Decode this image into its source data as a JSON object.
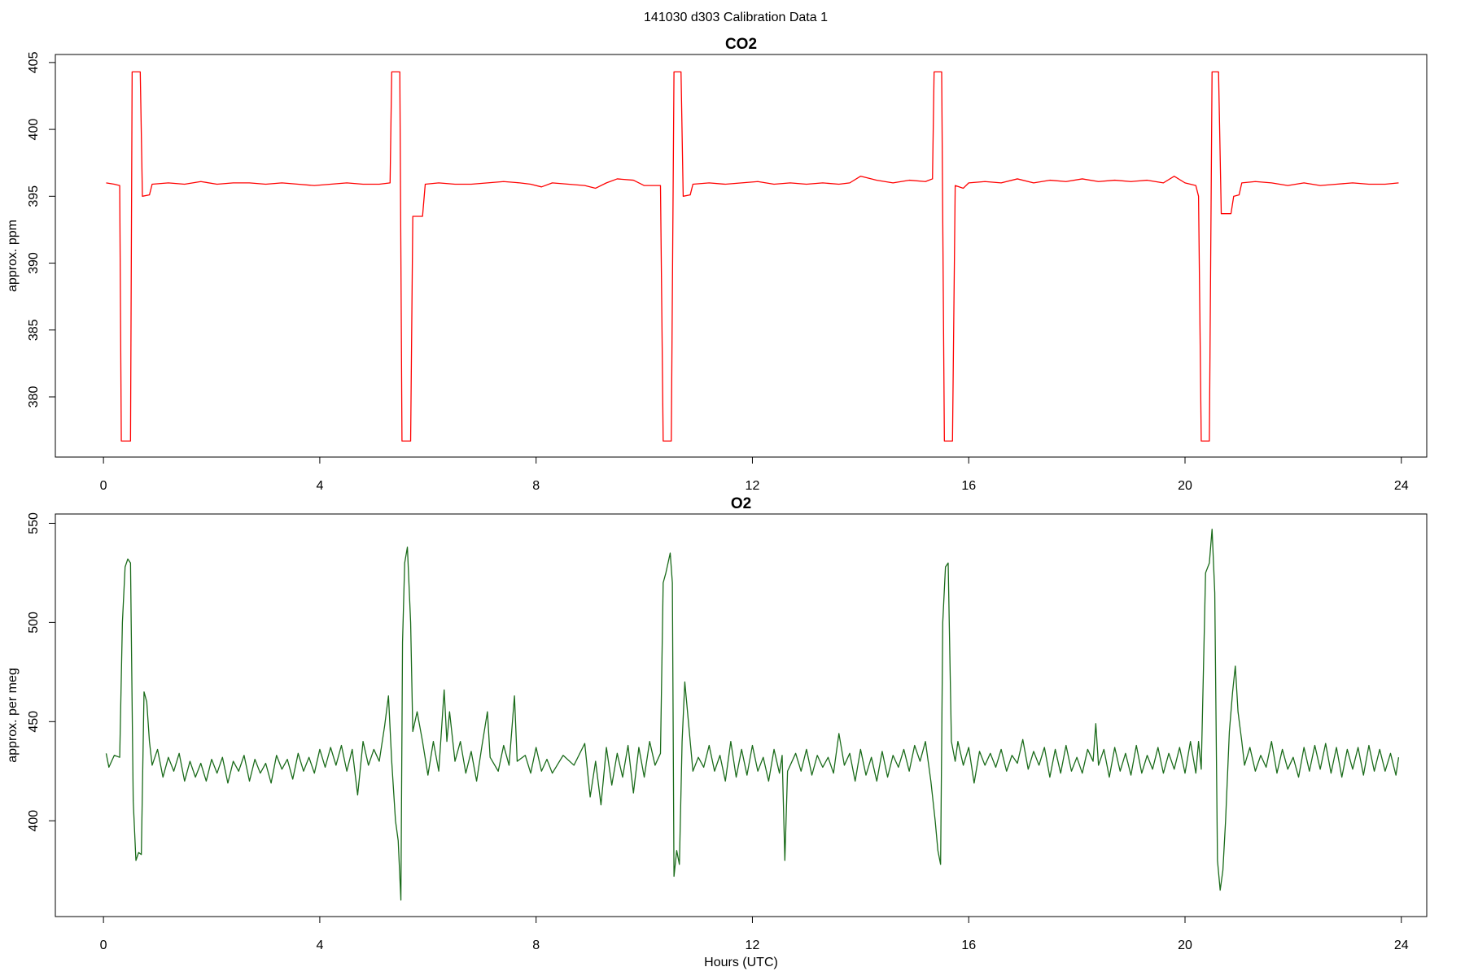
{
  "title": "141030   d303   Calibration Data 1",
  "chart_data": [
    {
      "type": "line",
      "title": "CO2",
      "ylabel": "approx. ppm",
      "xlim": [
        -0.89,
        24.47
      ],
      "xticks": [
        0,
        4,
        8,
        12,
        16,
        20,
        24
      ],
      "ylim": [
        375.5,
        405.6
      ],
      "yticks": [
        380,
        385,
        390,
        395,
        400,
        405
      ],
      "x": [
        0.05,
        0.2,
        0.3,
        0.33,
        0.5,
        0.53,
        0.68,
        0.72,
        0.85,
        0.9,
        1.2,
        1.5,
        1.8,
        2.1,
        2.4,
        2.7,
        3.0,
        3.3,
        3.6,
        3.9,
        4.2,
        4.5,
        4.8,
        5.1,
        5.3,
        5.33,
        5.48,
        5.52,
        5.68,
        5.72,
        5.9,
        5.95,
        6.2,
        6.5,
        6.8,
        7.1,
        7.4,
        7.7,
        7.9,
        8.1,
        8.3,
        8.6,
        8.9,
        9.1,
        9.3,
        9.5,
        9.8,
        10.0,
        10.3,
        10.35,
        10.5,
        10.55,
        10.68,
        10.72,
        10.85,
        10.9,
        11.2,
        11.5,
        11.8,
        12.1,
        12.4,
        12.7,
        13.0,
        13.3,
        13.6,
        13.8,
        14.0,
        14.3,
        14.6,
        14.9,
        15.2,
        15.33,
        15.36,
        15.5,
        15.55,
        15.7,
        15.75,
        15.9,
        16.0,
        16.3,
        16.6,
        16.9,
        17.2,
        17.5,
        17.8,
        18.1,
        18.4,
        18.7,
        19.0,
        19.3,
        19.6,
        19.8,
        20.0,
        20.2,
        20.25,
        20.3,
        20.45,
        20.5,
        20.62,
        20.67,
        20.85,
        20.9,
        21.0,
        21.05,
        21.3,
        21.6,
        21.9,
        22.2,
        22.5,
        22.8,
        23.1,
        23.4,
        23.7,
        23.95
      ],
      "series": [
        {
          "color": "#ff0000",
          "values": [
            396.0,
            395.9,
            395.8,
            376.7,
            376.7,
            404.3,
            404.3,
            395.0,
            395.1,
            395.9,
            396.0,
            395.9,
            396.1,
            395.9,
            396.0,
            396.0,
            395.9,
            396.0,
            395.9,
            395.8,
            395.9,
            396.0,
            395.9,
            395.9,
            396.0,
            404.3,
            404.3,
            376.7,
            376.7,
            393.5,
            393.5,
            395.9,
            396.0,
            395.9,
            395.9,
            396.0,
            396.1,
            396.0,
            395.9,
            395.7,
            396.0,
            395.9,
            395.8,
            395.6,
            396.0,
            396.3,
            396.2,
            395.8,
            395.8,
            376.7,
            376.7,
            404.3,
            404.3,
            395.0,
            395.1,
            395.9,
            396.0,
            395.9,
            396.0,
            396.1,
            395.9,
            396.0,
            395.9,
            396.0,
            395.9,
            396.0,
            396.5,
            396.2,
            396.0,
            396.2,
            396.1,
            396.3,
            404.3,
            404.3,
            376.7,
            376.7,
            395.8,
            395.6,
            396.0,
            396.1,
            396.0,
            396.3,
            396.0,
            396.2,
            396.1,
            396.3,
            396.1,
            396.2,
            396.1,
            396.2,
            396.0,
            396.5,
            396.0,
            395.8,
            395.0,
            376.7,
            376.7,
            404.3,
            404.3,
            393.7,
            393.7,
            395.0,
            395.1,
            396.0,
            396.1,
            396.0,
            395.8,
            396.0,
            395.8,
            395.9,
            396.0,
            395.9,
            395.9,
            396.0
          ]
        }
      ]
    },
    {
      "type": "line",
      "title": "O2",
      "ylabel": "approx. per meg",
      "xlabel": "Hours (UTC)",
      "xlim": [
        -0.89,
        24.47
      ],
      "xticks": [
        0,
        4,
        8,
        12,
        16,
        20,
        24
      ],
      "ylim": [
        351.7,
        554.7
      ],
      "yticks": [
        400,
        450,
        500,
        550
      ],
      "x": [
        0.05,
        0.1,
        0.2,
        0.3,
        0.35,
        0.4,
        0.45,
        0.5,
        0.55,
        0.6,
        0.65,
        0.7,
        0.75,
        0.8,
        0.85,
        0.9,
        1.0,
        1.1,
        1.2,
        1.3,
        1.4,
        1.5,
        1.6,
        1.7,
        1.8,
        1.9,
        2.0,
        2.1,
        2.2,
        2.3,
        2.4,
        2.5,
        2.6,
        2.7,
        2.8,
        2.9,
        3.0,
        3.1,
        3.2,
        3.3,
        3.4,
        3.5,
        3.6,
        3.7,
        3.8,
        3.9,
        4.0,
        4.1,
        4.2,
        4.3,
        4.4,
        4.5,
        4.6,
        4.7,
        4.8,
        4.9,
        5.0,
        5.1,
        5.2,
        5.27,
        5.33,
        5.4,
        5.45,
        5.5,
        5.53,
        5.57,
        5.62,
        5.68,
        5.72,
        5.8,
        5.9,
        6.0,
        6.1,
        6.2,
        6.3,
        6.35,
        6.4,
        6.5,
        6.6,
        6.7,
        6.8,
        6.9,
        7.0,
        7.1,
        7.15,
        7.3,
        7.4,
        7.5,
        7.6,
        7.65,
        7.8,
        7.9,
        8.0,
        8.1,
        8.2,
        8.3,
        8.5,
        8.7,
        8.9,
        9.0,
        9.1,
        9.2,
        9.3,
        9.4,
        9.5,
        9.6,
        9.7,
        9.8,
        9.9,
        10.0,
        10.1,
        10.2,
        10.3,
        10.35,
        10.4,
        10.48,
        10.52,
        10.55,
        10.6,
        10.65,
        10.7,
        10.75,
        10.8,
        10.85,
        10.9,
        11.0,
        11.1,
        11.2,
        11.3,
        11.4,
        11.5,
        11.6,
        11.7,
        11.8,
        11.9,
        12.0,
        12.1,
        12.2,
        12.3,
        12.4,
        12.5,
        12.55,
        12.6,
        12.65,
        12.8,
        12.9,
        13.0,
        13.1,
        13.2,
        13.3,
        13.4,
        13.5,
        13.6,
        13.7,
        13.8,
        13.9,
        14.0,
        14.1,
        14.2,
        14.3,
        14.4,
        14.5,
        14.6,
        14.7,
        14.8,
        14.9,
        15.0,
        15.1,
        15.2,
        15.3,
        15.38,
        15.43,
        15.48,
        15.52,
        15.57,
        15.62,
        15.68,
        15.75,
        15.8,
        15.9,
        16.0,
        16.1,
        16.2,
        16.3,
        16.4,
        16.5,
        16.6,
        16.7,
        16.8,
        16.9,
        17.0,
        17.1,
        17.2,
        17.3,
        17.4,
        17.5,
        17.6,
        17.7,
        17.8,
        17.9,
        18.0,
        18.1,
        18.2,
        18.3,
        18.35,
        18.4,
        18.5,
        18.6,
        18.7,
        18.8,
        18.9,
        19.0,
        19.1,
        19.2,
        19.3,
        19.4,
        19.5,
        19.6,
        19.7,
        19.8,
        19.9,
        20.0,
        20.1,
        20.2,
        20.25,
        20.3,
        20.38,
        20.45,
        20.5,
        20.55,
        20.6,
        20.65,
        20.7,
        20.75,
        20.82,
        20.88,
        20.93,
        20.98,
        21.05,
        21.1,
        21.2,
        21.3,
        21.4,
        21.5,
        21.6,
        21.7,
        21.8,
        21.9,
        22.0,
        22.1,
        22.2,
        22.3,
        22.4,
        22.5,
        22.6,
        22.7,
        22.8,
        22.9,
        23.0,
        23.1,
        23.2,
        23.3,
        23.4,
        23.5,
        23.6,
        23.7,
        23.8,
        23.9,
        23.95
      ],
      "series": [
        {
          "color": "#1a6b1a",
          "values": [
            434,
            427,
            433,
            432,
            500,
            528,
            532,
            530,
            410,
            380,
            384,
            383,
            465,
            460,
            440,
            428,
            436,
            422,
            432,
            425,
            434,
            420,
            430,
            422,
            429,
            420,
            431,
            424,
            432,
            419,
            430,
            425,
            433,
            420,
            431,
            424,
            429,
            419,
            433,
            426,
            431,
            421,
            434,
            425,
            432,
            424,
            436,
            427,
            437,
            428,
            438,
            425,
            436,
            413,
            440,
            428,
            436,
            430,
            448,
            463,
            430,
            400,
            390,
            360,
            490,
            530,
            538,
            500,
            445,
            455,
            440,
            423,
            440,
            425,
            466,
            440,
            455,
            430,
            440,
            424,
            435,
            420,
            438,
            455,
            432,
            425,
            438,
            428,
            463,
            430,
            433,
            424,
            437,
            425,
            431,
            424,
            433,
            428,
            439,
            412,
            430,
            408,
            437,
            418,
            434,
            422,
            438,
            414,
            437,
            422,
            440,
            428,
            434,
            520,
            525,
            535,
            520,
            372,
            385,
            378,
            440,
            470,
            455,
            440,
            425,
            432,
            427,
            438,
            425,
            433,
            420,
            440,
            422,
            436,
            423,
            438,
            425,
            432,
            420,
            436,
            424,
            433,
            380,
            425,
            434,
            425,
            436,
            423,
            433,
            427,
            432,
            424,
            444,
            428,
            434,
            420,
            436,
            423,
            432,
            420,
            435,
            422,
            433,
            427,
            436,
            425,
            438,
            430,
            440,
            420,
            400,
            385,
            378,
            500,
            528,
            530,
            440,
            430,
            440,
            428,
            437,
            419,
            435,
            428,
            434,
            427,
            436,
            425,
            433,
            429,
            441,
            426,
            435,
            428,
            437,
            422,
            436,
            424,
            438,
            425,
            432,
            424,
            436,
            430,
            449,
            428,
            436,
            422,
            437,
            425,
            434,
            423,
            438,
            424,
            433,
            426,
            437,
            424,
            434,
            426,
            437,
            424,
            440,
            424,
            440,
            426,
            525,
            530,
            547,
            515,
            380,
            365,
            375,
            400,
            445,
            465,
            478,
            455,
            440,
            428,
            437,
            425,
            433,
            427,
            440,
            424,
            436,
            426,
            432,
            422,
            437,
            425,
            438,
            426,
            439,
            424,
            437,
            422,
            436,
            426,
            437,
            423,
            438,
            425,
            436,
            425,
            434,
            423,
            432
          ]
        }
      ]
    }
  ]
}
